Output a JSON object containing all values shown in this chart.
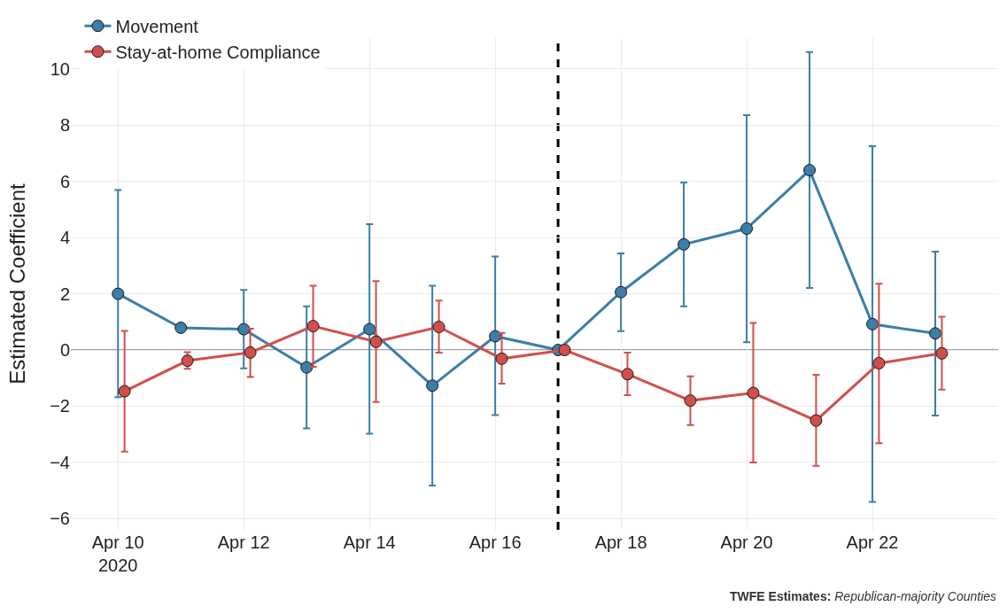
{
  "chart_data": {
    "type": "line",
    "ylabel": "Estimated Coefficient",
    "annotations": [
      "TWFE Estimates: Republican-majority Counties"
    ],
    "xlim": [
      "2020-04-09T06:00",
      "2020-04-24"
    ],
    "xticks": [
      {
        "value": "2020-04-10",
        "label": "Apr 10\n2020"
      },
      {
        "value": "2020-04-12",
        "label": "Apr 12"
      },
      {
        "value": "2020-04-14",
        "label": "Apr 14"
      },
      {
        "value": "2020-04-16",
        "label": "Apr 16"
      },
      {
        "value": "2020-04-18",
        "label": "Apr 18"
      },
      {
        "value": "2020-04-20",
        "label": "Apr 20"
      },
      {
        "value": "2020-04-22",
        "label": "Apr 22"
      }
    ],
    "ylim": [
      -6.4,
      11.1
    ],
    "yticks": [
      -6,
      -4,
      -2,
      0,
      2,
      4,
      6,
      8,
      10
    ],
    "grid": true,
    "legend": "top left",
    "marker": "circle",
    "line_style": "solid",
    "ref_lines": [
      {
        "axis": "x",
        "value": "2020-04-17",
        "color": "#000000",
        "line_style": "dashed"
      },
      {
        "axis": "y",
        "value": 0,
        "color": "#808080",
        "line_style": "solid"
      }
    ],
    "series": [
      {
        "name": "Movement",
        "color": "#3b7ea8",
        "x": [
          "2020-04-10",
          "2020-04-11",
          "2020-04-12",
          "2020-04-13",
          "2020-04-14",
          "2020-04-15",
          "2020-04-16",
          "2020-04-17",
          "2020-04-18",
          "2020-04-19",
          "2020-04-20",
          "2020-04-21",
          "2020-04-22",
          "2020-04-23"
        ],
        "values": [
          2.0,
          0.79,
          0.74,
          -0.62,
          0.74,
          -1.27,
          0.49,
          0,
          2.06,
          3.76,
          4.32,
          6.4,
          0.92,
          0.59
        ],
        "errors": [
          [
            -1.68,
            5.69
          ],
          null,
          [
            -0.65,
            2.14
          ],
          [
            -2.79,
            1.55
          ],
          [
            -2.98,
            4.48
          ],
          [
            -4.82,
            2.29
          ],
          [
            -2.32,
            3.33
          ],
          null,
          [
            0.67,
            3.44
          ],
          [
            1.55,
            5.96
          ],
          [
            0.28,
            8.36
          ],
          [
            2.21,
            10.6
          ],
          [
            -5.41,
            7.25
          ],
          [
            -2.33,
            3.5
          ]
        ]
      },
      {
        "name": "Stay-at-home Compliance",
        "color": "#d14f4b",
        "x": [
          "2020-04-10T02:30",
          "2020-04-11T02:30",
          "2020-04-12T02:30",
          "2020-04-13T02:30",
          "2020-04-14T02:30",
          "2020-04-15T02:30",
          "2020-04-16T02:30",
          "2020-04-17T02:30",
          "2020-04-18T02:30",
          "2020-04-19T02:30",
          "2020-04-20T02:30",
          "2020-04-21T02:30",
          "2020-04-22T02:30",
          "2020-04-23T02:30"
        ],
        "values": [
          -1.47,
          -0.38,
          -0.09,
          0.85,
          0.29,
          0.82,
          -0.31,
          0,
          -0.86,
          -1.8,
          -1.53,
          -2.51,
          -0.47,
          -0.12
        ],
        "errors": [
          [
            -3.62,
            0.68
          ],
          [
            -0.67,
            -0.08
          ],
          [
            -0.96,
            0.76
          ],
          [
            -0.6,
            2.29
          ],
          [
            -1.85,
            2.45
          ],
          [
            -0.09,
            1.76
          ],
          [
            -1.2,
            0.61
          ],
          null,
          [
            -1.61,
            -0.09
          ],
          [
            -2.67,
            -0.94
          ],
          [
            -4.0,
            0.96
          ],
          [
            -4.12,
            -0.88
          ],
          [
            -3.32,
            2.36
          ],
          [
            -1.41,
            1.18
          ]
        ]
      }
    ]
  }
}
